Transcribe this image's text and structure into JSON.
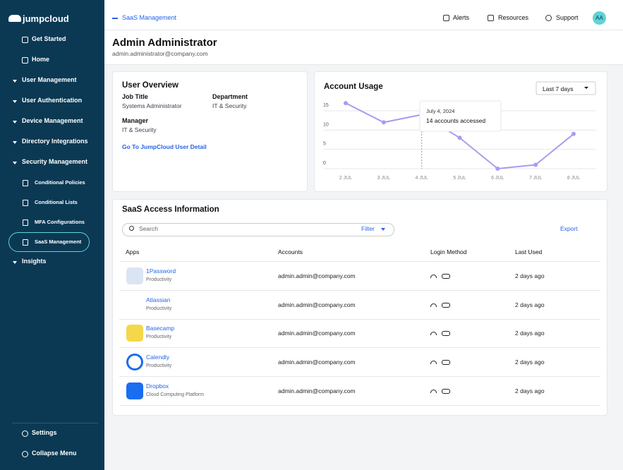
{
  "sidebar": {
    "logo": "jumpcloud",
    "items": [
      {
        "label": "Get Started"
      },
      {
        "label": "Home"
      },
      {
        "label": "User Management"
      },
      {
        "label": "User Authentication"
      },
      {
        "label": "Device Management"
      },
      {
        "label": "Directory Integrations"
      },
      {
        "label": "Security Management",
        "children": [
          "Conditional Policies",
          "Conditional Lists",
          "MFA Configurations",
          "SaaS Management"
        ]
      },
      {
        "label": "Insights"
      }
    ],
    "bottom": [
      "Settings",
      "Collapse Menu"
    ]
  },
  "topbar": {
    "back": "SaaS Management",
    "alerts": "Alerts",
    "resources": "Resources",
    "support": "Support",
    "avatar": "AA"
  },
  "header": {
    "name": "Admin Administrator",
    "email": "admin.administrator@company.com"
  },
  "user_overview": {
    "title": "User Overview",
    "fields": [
      {
        "label": "Job Title",
        "value": "Systems Administrator"
      },
      {
        "label": "Department",
        "value": "IT & Security"
      },
      {
        "label": "Manager",
        "value": "IT & Security"
      }
    ],
    "link": "Go To JumpCloud User Detail"
  },
  "chart_data": {
    "type": "line",
    "title": "Account Usage",
    "range": "Last 7 days",
    "categories": [
      "2 JUL",
      "3 JUL",
      "4 JUL",
      "5 JUL",
      "6 JUL",
      "7 JUL",
      "8 JUL"
    ],
    "values": [
      17,
      12,
      14,
      8,
      0,
      1,
      9
    ],
    "color": "#a99bf0",
    "ylim": [
      0,
      18
    ],
    "yticks": [
      0,
      5,
      10,
      15
    ],
    "grid": true,
    "tooltip": {
      "date": "July 4, 2024",
      "text": "14 accounts accessed"
    }
  },
  "saas": {
    "title": "SaaS Access Information",
    "search": "Search",
    "filter": "Filter",
    "export": "Export",
    "columns": [
      "Apps",
      "Accounts",
      "Login Method",
      "Last Used"
    ],
    "rows": [
      {
        "name": "1Password",
        "category": "Productivity",
        "account": "admin.admin@company.com",
        "last_used": "2 days ago"
      },
      {
        "name": "Atlassian",
        "category": "Productivity",
        "account": "admin.admin@company.com",
        "last_used": "2 days ago"
      },
      {
        "name": "Basecamp",
        "category": "Productivity",
        "account": "admin.admin@company.com",
        "last_used": "2 days ago"
      },
      {
        "name": "Calendly",
        "category": "Productivity",
        "account": "admin.admin@company.com",
        "last_used": "2 days ago"
      },
      {
        "name": "Dropbox",
        "category": "Cloud Computing Platform",
        "account": "admin.admin@company.com",
        "last_used": "2 days ago"
      }
    ]
  }
}
